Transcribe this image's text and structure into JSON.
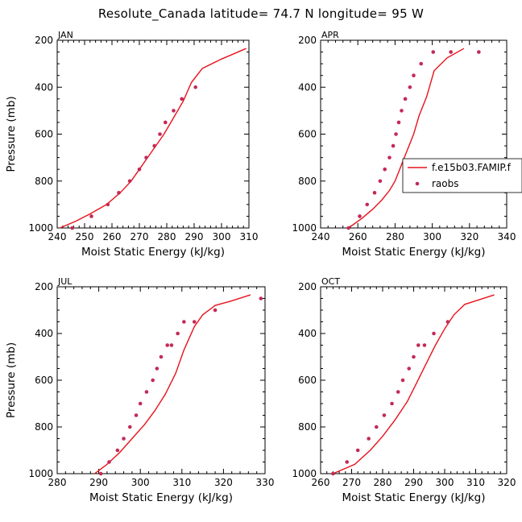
{
  "figure_title": "Resolute_Canada   latitude= 74.7 N longitude= 95 W",
  "colors": {
    "model": "#e8121c",
    "obs": "#c42a56",
    "axes": "#000000"
  },
  "legend": {
    "model_label": "f.e15b03.FAMIP.f",
    "obs_label": "raobs",
    "placement": "right (APR panel)"
  },
  "chart_data": [
    {
      "type": "scatter",
      "panel": "JAN",
      "xlabel": "Moist Static Energy (kJ/kg)",
      "ylabel": "Pressure (mb)",
      "xlim": [
        240,
        310
      ],
      "ylim": [
        1000,
        200
      ],
      "y_reversed": true,
      "xticks": [
        240,
        250,
        260,
        270,
        280,
        290,
        300,
        310
      ],
      "yticks": [
        200,
        400,
        600,
        800,
        1000
      ],
      "series": [
        {
          "name": "f.e15b03.FAMIP.f",
          "kind": "line",
          "x": [
            241,
            247,
            252,
            258,
            263,
            267,
            270,
            273,
            276,
            279,
            282,
            286,
            289,
            293,
            300,
            309
          ],
          "y": [
            1000,
            970,
            940,
            900,
            850,
            800,
            750,
            700,
            650,
            600,
            540,
            460,
            380,
            320,
            280,
            235
          ]
        },
        {
          "name": "raobs",
          "kind": "points",
          "x": [
            245.5,
            252.5,
            258.5,
            262.5,
            266.5,
            270,
            272.5,
            275.5,
            277.5,
            279.5,
            282.5,
            285.5,
            290.5
          ],
          "y": [
            1000,
            950,
            900,
            850,
            800,
            750,
            700,
            650,
            600,
            550,
            500,
            450,
            400
          ]
        }
      ]
    },
    {
      "type": "scatter",
      "panel": "APR",
      "xlabel": "Moist Static Energy (kJ/kg)",
      "ylabel": "",
      "xlim": [
        240,
        340
      ],
      "ylim": [
        1000,
        200
      ],
      "y_reversed": true,
      "xticks": [
        240,
        260,
        280,
        300,
        320,
        340
      ],
      "yticks": [
        200,
        400,
        600,
        800,
        1000
      ],
      "series": [
        {
          "name": "f.e15b03.FAMIP.f",
          "kind": "line",
          "x": [
            255,
            262,
            268,
            273,
            277,
            280,
            282.5,
            285,
            287.5,
            290,
            293,
            297,
            301,
            308,
            317
          ],
          "y": [
            1000,
            960,
            920,
            880,
            840,
            800,
            750,
            700,
            650,
            600,
            520,
            440,
            330,
            275,
            235
          ]
        },
        {
          "name": "raobs",
          "kind": "points",
          "x": [
            255,
            261,
            265,
            269,
            272,
            274.5,
            277,
            279,
            280.5,
            282,
            283.5,
            285.5,
            288,
            290,
            294,
            300.5,
            310,
            325
          ],
          "y": [
            1000,
            950,
            900,
            850,
            800,
            750,
            700,
            650,
            600,
            550,
            500,
            450,
            400,
            350,
            300,
            250,
            250,
            250
          ]
        }
      ]
    },
    {
      "type": "scatter",
      "panel": "JUL",
      "xlabel": "Moist Static Energy (kJ/kg)",
      "ylabel": "Pressure (mb)",
      "xlim": [
        280,
        330
      ],
      "ylim": [
        1000,
        200
      ],
      "y_reversed": true,
      "xticks": [
        280,
        290,
        300,
        310,
        320,
        330
      ],
      "yticks": [
        200,
        400,
        600,
        800,
        1000
      ],
      "series": [
        {
          "name": "f.e15b03.FAMIP.f",
          "kind": "line",
          "x": [
            289,
            292,
            295,
            298,
            301,
            303.5,
            306,
            308.5,
            310.5,
            313,
            315,
            318,
            322,
            326.5
          ],
          "y": [
            1000,
            960,
            910,
            850,
            790,
            730,
            660,
            570,
            470,
            370,
            320,
            280,
            260,
            235
          ]
        },
        {
          "name": "raobs",
          "kind": "points",
          "x": [
            290.5,
            292.5,
            294.5,
            296,
            297.5,
            299,
            300,
            301.5,
            303,
            304,
            305,
            306.5,
            307.5,
            309,
            310.5,
            313,
            318,
            329
          ],
          "y": [
            1000,
            950,
            900,
            850,
            800,
            750,
            700,
            650,
            600,
            550,
            500,
            450,
            450,
            400,
            350,
            350,
            300,
            250
          ]
        }
      ]
    },
    {
      "type": "scatter",
      "panel": "OCT",
      "xlabel": "Moist Static Energy (kJ/kg)",
      "ylabel": "",
      "xlim": [
        260,
        320
      ],
      "ylim": [
        1000,
        200
      ],
      "y_reversed": true,
      "xticks": [
        260,
        270,
        280,
        290,
        300,
        310,
        320
      ],
      "yticks": [
        200,
        400,
        600,
        800,
        1000
      ],
      "series": [
        {
          "name": "f.e15b03.FAMIP.f",
          "kind": "line",
          "x": [
            264,
            271,
            276,
            280,
            284,
            288,
            291,
            294,
            297,
            300,
            303,
            306.5,
            316
          ],
          "y": [
            1000,
            960,
            900,
            840,
            770,
            690,
            610,
            530,
            450,
            380,
            320,
            275,
            235
          ]
        },
        {
          "name": "raobs",
          "kind": "points",
          "x": [
            264,
            268.5,
            272,
            275.5,
            278,
            280.5,
            283,
            285,
            286.5,
            288.5,
            290,
            291.5,
            293.5,
            296.5,
            301
          ],
          "y": [
            1000,
            950,
            900,
            850,
            800,
            750,
            700,
            650,
            600,
            550,
            500,
            450,
            450,
            400,
            350
          ]
        }
      ]
    }
  ]
}
